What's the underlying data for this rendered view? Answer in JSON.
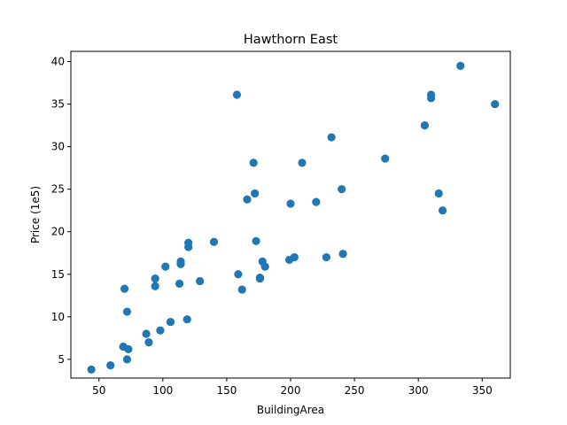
{
  "chart_data": {
    "type": "scatter",
    "title": "Hawthorn East",
    "xlabel": "BuildingArea",
    "ylabel": "Price (1e5)",
    "xlim": [
      28,
      372
    ],
    "ylim": [
      2.8,
      41.2
    ],
    "xticks": [
      50,
      100,
      150,
      200,
      250,
      300,
      350
    ],
    "yticks": [
      5,
      10,
      15,
      20,
      25,
      30,
      35,
      40
    ],
    "grid": false,
    "color": "#1f77b4",
    "points": [
      [
        44,
        3.8
      ],
      [
        59,
        4.3
      ],
      [
        69,
        6.5
      ],
      [
        72,
        5.0
      ],
      [
        73,
        6.2
      ],
      [
        70,
        13.3
      ],
      [
        72,
        10.6
      ],
      [
        87,
        8.0
      ],
      [
        89,
        7.0
      ],
      [
        94,
        13.6
      ],
      [
        94,
        14.5
      ],
      [
        98,
        8.4
      ],
      [
        102,
        15.9
      ],
      [
        106,
        9.4
      ],
      [
        113,
        13.9
      ],
      [
        114,
        16.2
      ],
      [
        114,
        16.5
      ],
      [
        119,
        9.7
      ],
      [
        120,
        18.7
      ],
      [
        120,
        18.2
      ],
      [
        129,
        14.2
      ],
      [
        140,
        18.8
      ],
      [
        158,
        36.1
      ],
      [
        159,
        15.0
      ],
      [
        162,
        13.2
      ],
      [
        166,
        23.8
      ],
      [
        171,
        28.1
      ],
      [
        172,
        24.5
      ],
      [
        173,
        18.9
      ],
      [
        176,
        14.5
      ],
      [
        176,
        14.6
      ],
      [
        178,
        16.5
      ],
      [
        180,
        15.9
      ],
      [
        199,
        16.7
      ],
      [
        200,
        23.3
      ],
      [
        203,
        17.0
      ],
      [
        209,
        28.1
      ],
      [
        220,
        23.5
      ],
      [
        228,
        17.0
      ],
      [
        232,
        31.1
      ],
      [
        240,
        25.0
      ],
      [
        241,
        17.4
      ],
      [
        274,
        28.6
      ],
      [
        305,
        32.5
      ],
      [
        310,
        36.1
      ],
      [
        310,
        35.7
      ],
      [
        316,
        24.5
      ],
      [
        319,
        22.5
      ],
      [
        333,
        39.5
      ],
      [
        360,
        35.0
      ]
    ]
  }
}
